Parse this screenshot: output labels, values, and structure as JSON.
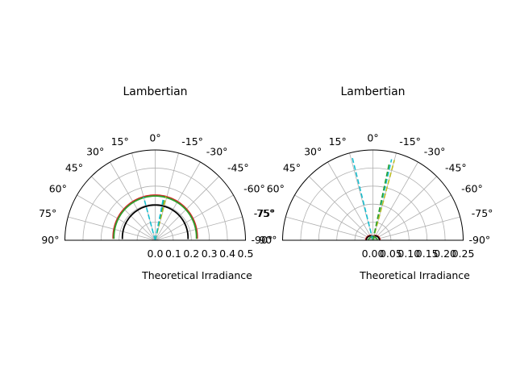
{
  "chart_data": [
    {
      "type": "line",
      "projection": "polar (half plane, 0° at top, positive angles to the left)",
      "title": "Lambertian",
      "xlabel": "Theoretical Irradiance",
      "theta_range_deg": [
        -90,
        90
      ],
      "r_range": [
        0,
        0.5
      ],
      "grid": true,
      "theta_tick_labels": [
        "0°",
        "15°",
        "-15°",
        "30°",
        "-30°",
        "45°",
        "-45°",
        "60°",
        "-60°",
        "75°",
        "-75°",
        "90°",
        "-90°"
      ],
      "r_tick_labels": [
        "0.0",
        "0.1",
        "0.2",
        "0.3",
        "0.4",
        "0.5"
      ],
      "colors": {
        "curve_a": "#d62728",
        "curve_b": "#2ca02c",
        "curve_c": "#000000",
        "ray_cyan": "#17becf",
        "ray_yellow": "#bcbd22",
        "ray_green": "#2ca02c"
      },
      "series": [
        {
          "color": "#d62728",
          "style": "solid",
          "shape": "arc",
          "r": 0.25
        },
        {
          "color": "#2ca02c",
          "style": "solid",
          "shape": "arc",
          "r": 0.245
        },
        {
          "color": "#000000",
          "style": "solid",
          "shape": "arc",
          "r": 0.195
        },
        {
          "color": "#17becf",
          "style": "dashed",
          "shape": "ray",
          "theta_deg": 15,
          "r": 0.25
        },
        {
          "color": "#bcbd22",
          "style": "dashed",
          "shape": "ray",
          "theta_deg": -14,
          "r": 0.25
        },
        {
          "color": "#2ca02c",
          "style": "dashed",
          "shape": "ray",
          "theta_deg": -12,
          "r": 0.25
        },
        {
          "color": "#17becf",
          "style": "dashed",
          "shape": "ray",
          "theta_deg": -11,
          "r": 0.23
        }
      ]
    },
    {
      "type": "line",
      "projection": "polar (half plane, 0° at top, positive angles to the left)",
      "title": "Lambertian",
      "xlabel": "Theoretical Irradiance",
      "theta_range_deg": [
        -90,
        90
      ],
      "r_range": [
        0,
        0.25
      ],
      "grid": true,
      "theta_tick_labels": [
        "0°",
        "15°",
        "-15°",
        "30°",
        "-30°",
        "45°",
        "-45°",
        "60°",
        "-60°",
        "75°",
        "-75°",
        "90°",
        "-90°"
      ],
      "r_tick_labels": [
        "0.00",
        "0.05",
        "0.10",
        "0.15",
        "0.20",
        "0.25"
      ],
      "series": [
        {
          "color": "#d62728",
          "style": "solid",
          "shape": "lobe",
          "r": 0.02
        },
        {
          "color": "#000000",
          "style": "solid",
          "shape": "lobe",
          "r": 0.018
        },
        {
          "color": "#2ca02c",
          "style": "solid",
          "shape": "lobe",
          "r": 0.012
        },
        {
          "color": "#17becf",
          "style": "dashed",
          "shape": "ray",
          "theta_deg": 14,
          "r": 0.235
        },
        {
          "color": "#17becf",
          "style": "dashed",
          "shape": "ray",
          "theta_deg": -13,
          "r": 0.23
        },
        {
          "color": "#bcbd22",
          "style": "dashed",
          "shape": "ray",
          "theta_deg": -15,
          "r": 0.23
        },
        {
          "color": "#2ca02c",
          "style": "dashed",
          "shape": "ray",
          "theta_deg": -12,
          "r": 0.22
        }
      ]
    }
  ]
}
